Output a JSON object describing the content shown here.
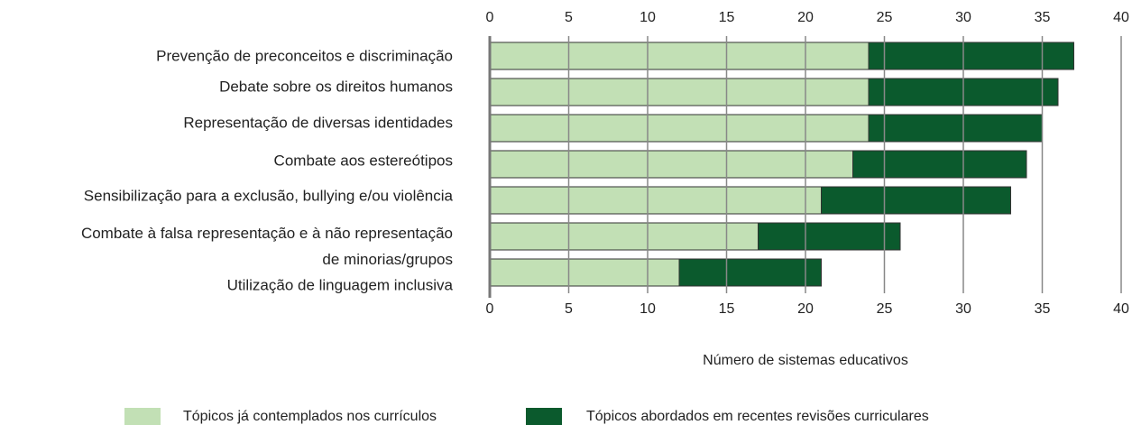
{
  "chart_data": {
    "type": "stacked_barh",
    "categories": [
      "Prevenção de preconceitos e discriminação",
      "Debate sobre os direitos humanos",
      "Representação de diversas identidades",
      "Combate aos estereótipos",
      "Sensibilização para a exclusão, bullying e/ou violência",
      "Combate à falsa representação e à não representação\nde minorias/grupos",
      "Utilização de linguagem inclusiva"
    ],
    "series": [
      {
        "name": "Tópicos já contemplados nos currículos",
        "color": "#c2e0b5",
        "values": [
          24,
          24,
          24,
          23,
          21,
          17,
          12
        ]
      },
      {
        "name": "Tópicos abordados em recentes revisões curriculares",
        "color": "#0b5a2d",
        "values": [
          13,
          12,
          11,
          11,
          12,
          9,
          9
        ]
      }
    ],
    "x_label": "Número de sistemas educativos",
    "xlim": [
      0,
      40
    ],
    "xticks": [
      0,
      5,
      10,
      15,
      20,
      25,
      30,
      35,
      40
    ],
    "grid": true
  }
}
